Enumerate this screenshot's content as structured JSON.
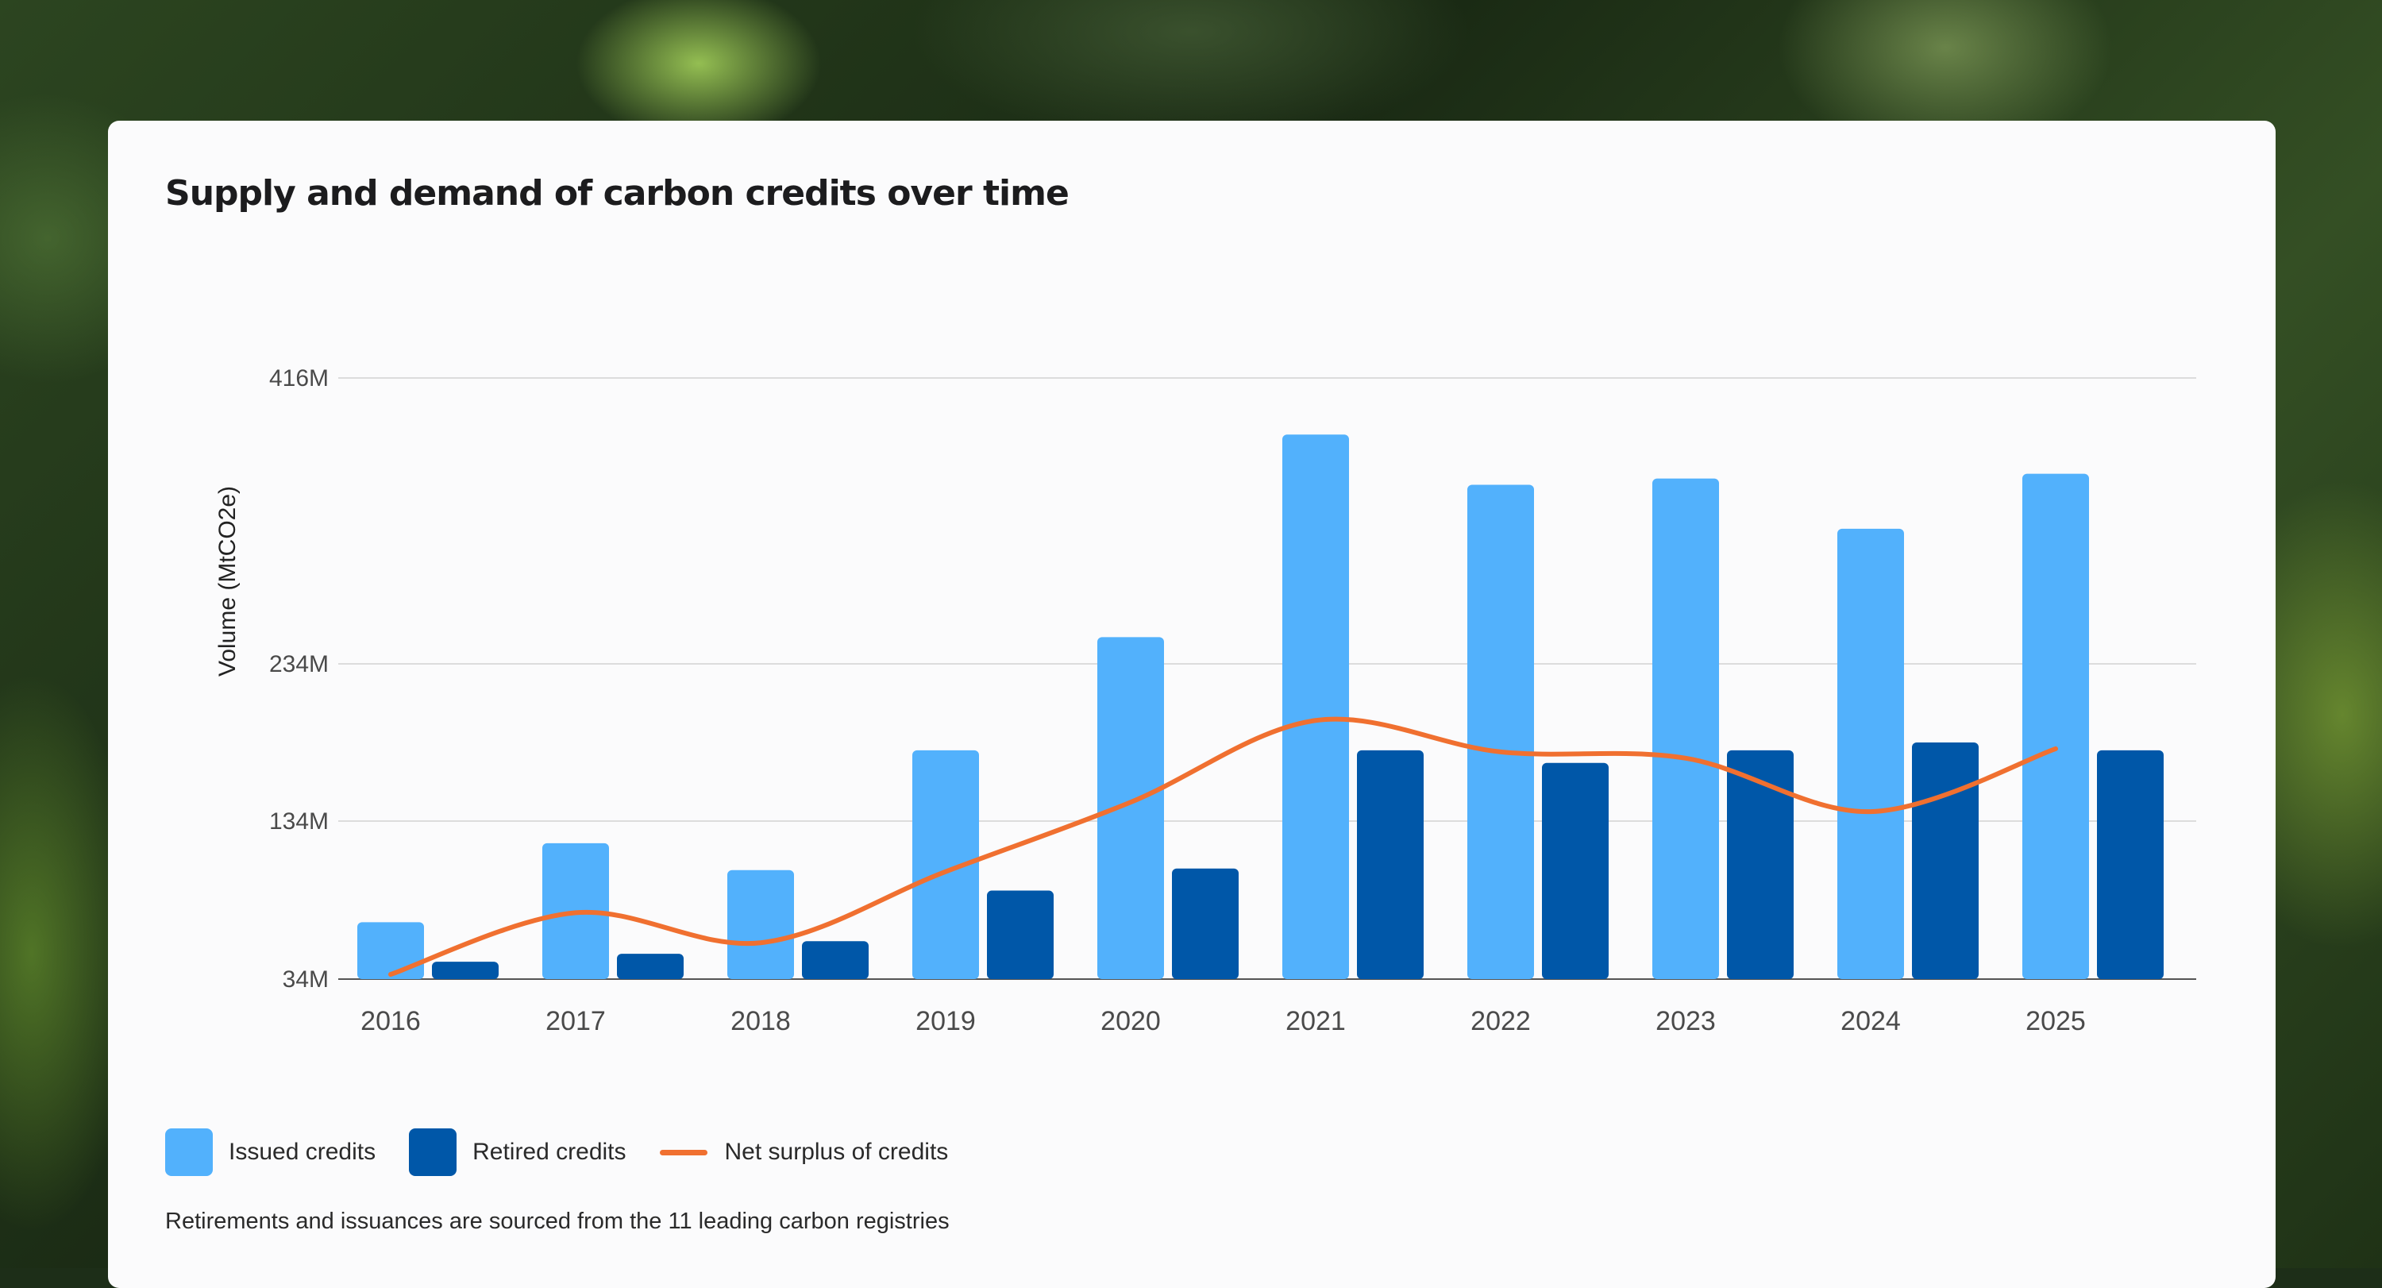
{
  "colors": {
    "issued": "#52b1fc",
    "retired": "#0057a8",
    "net": "#f07030",
    "grid": "#dcdcdc",
    "axis": "#555555"
  },
  "chart_data": {
    "type": "bar",
    "title": "Supply and demand of carbon credits over time",
    "ylabel": "Volume (MtCO2e)",
    "xlabel": "",
    "categories": [
      "2016",
      "2017",
      "2018",
      "2019",
      "2020",
      "2021",
      "2022",
      "2023",
      "2024",
      "2025"
    ],
    "ylim": [
      34,
      416
    ],
    "y_axis_ticks": [
      {
        "value": 34,
        "label": "34M"
      },
      {
        "value": 134,
        "label": "134M"
      },
      {
        "value": 234,
        "label": "234M"
      },
      {
        "value": 416,
        "label": "416M"
      }
    ],
    "y_scale_note": "non-linear axis; ticks at 34M, 134M, 234M, 416M",
    "series": [
      {
        "name": "Issued credits",
        "type": "bar",
        "values": [
          70,
          120,
          103,
          179,
          251,
          380,
          348,
          352,
          320,
          355
        ]
      },
      {
        "name": "Retired credits",
        "type": "bar",
        "values": [
          45,
          50,
          58,
          90,
          104,
          179,
          171,
          179,
          184,
          179
        ]
      },
      {
        "name": "Net surplus of credits",
        "type": "line",
        "values": [
          37,
          76,
          57,
          102,
          146,
          198,
          178,
          174,
          140,
          180
        ]
      }
    ],
    "legend_position": "bottom-left",
    "grid": true
  },
  "footnote": "Retirements and issuances are sourced from the 11 leading carbon registries"
}
